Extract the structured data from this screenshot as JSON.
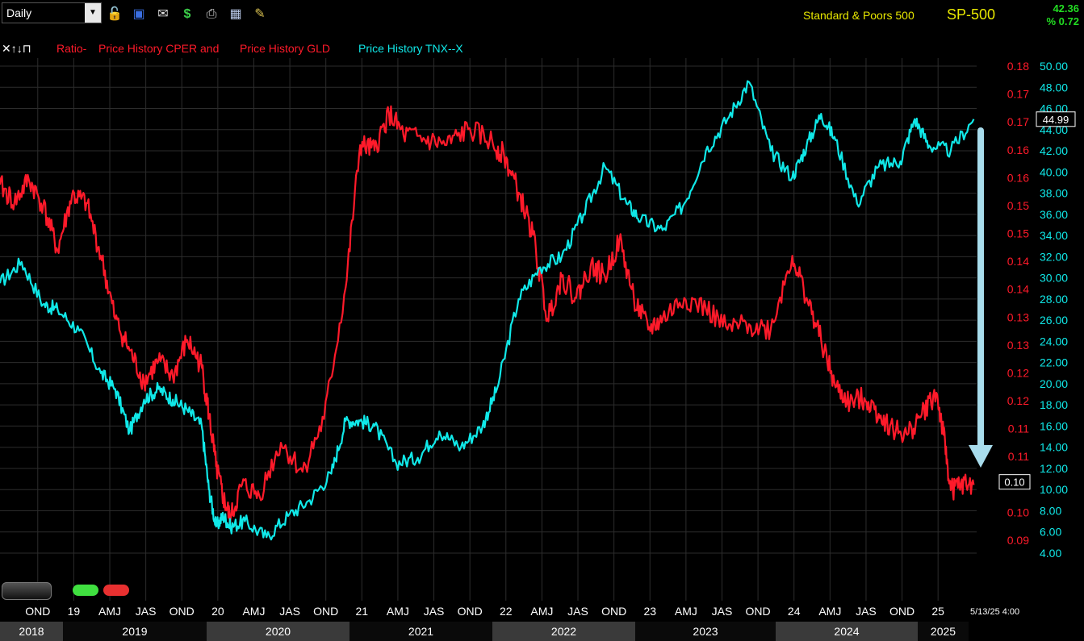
{
  "toolbar": {
    "period": "Daily",
    "icons": [
      "dropdown-arrow-icon",
      "lock-icon",
      "save-icon",
      "mail-icon",
      "dollar-icon",
      "print-icon",
      "calculator-icon",
      "pencil-icon"
    ],
    "index_name": "Standard & Poors 500",
    "symbol": "SP-500",
    "last_price": "42.36",
    "pct_change": "% 0.72"
  },
  "legend": {
    "controls": "✕↑↓⊓",
    "ratio_prefix": "Ratio-",
    "ratio_a": "Price History CPER and",
    "ratio_b": "Price History GLD",
    "tnx": "Price History TNX--X"
  },
  "colors": {
    "ratio": "#ff1a2a",
    "tnx": "#10e8e8",
    "grid": "#2c2c2c",
    "arrow": "#a8dcec"
  },
  "chart_data": {
    "type": "line",
    "title": "",
    "ratio_axis": {
      "ticks": [
        "0.18",
        "0.17",
        "0.17",
        "0.16",
        "0.16",
        "0.15",
        "0.15",
        "0.14",
        "0.14",
        "0.13",
        "0.13",
        "0.12",
        "0.12",
        "0.11",
        "0.11",
        "0.10",
        "0.10",
        "0.09"
      ],
      "range": [
        0.09,
        0.18
      ],
      "last_label": "0.10"
    },
    "tnx_axis": {
      "ticks": [
        "50.00",
        "48.00",
        "46.00",
        "44.00",
        "42.00",
        "40.00",
        "38.00",
        "36.00",
        "34.00",
        "32.00",
        "30.00",
        "28.00",
        "26.00",
        "24.00",
        "22.00",
        "20.00",
        "18.00",
        "16.00",
        "14.00",
        "12.00",
        "10.00",
        "8.00",
        "6.00",
        "4.00"
      ],
      "range": [
        4,
        50
      ],
      "last_label": "44.99"
    },
    "x_ticks": [
      "OND",
      "19",
      "AMJ",
      "JAS",
      "OND",
      "20",
      "AMJ",
      "JAS",
      "OND",
      "21",
      "AMJ",
      "JAS",
      "OND",
      "22",
      "AMJ",
      "JAS",
      "OND",
      "23",
      "AMJ",
      "JAS",
      "OND",
      "24",
      "AMJ",
      "JAS",
      "OND",
      "25"
    ],
    "years": [
      "2018",
      "2019",
      "2020",
      "2021",
      "2022",
      "2023",
      "2024",
      "2025"
    ],
    "last_date": "5/13/25 4:00",
    "series": [
      {
        "name": "Ratio- Price History CPER and Price History GLD",
        "axis": "left",
        "x": [
          2018.6,
          2018.7,
          2018.8,
          2018.9,
          2019.0,
          2019.1,
          2019.2,
          2019.3,
          2019.4,
          2019.5,
          2019.6,
          2019.7,
          2019.8,
          2019.9,
          2020.0,
          2020.05,
          2020.1,
          2020.15,
          2020.2,
          2020.28,
          2020.4,
          2020.55,
          2020.7,
          2020.85,
          2021.0,
          2021.1,
          2021.2,
          2021.3,
          2021.4,
          2021.55,
          2021.7,
          2021.85,
          2022.0,
          2022.1,
          2022.2,
          2022.3,
          2022.4,
          2022.5,
          2022.6,
          2022.7,
          2022.8,
          2022.9,
          2023.0,
          2023.1,
          2023.2,
          2023.35,
          2023.5,
          2023.65,
          2023.8,
          2023.95,
          2024.1,
          2024.2,
          2024.3,
          2024.4,
          2024.5,
          2024.6,
          2024.7,
          2024.8,
          2024.9,
          2025.0,
          2025.1,
          2025.15,
          2025.2,
          2025.27,
          2025.36
        ],
        "values": [
          0.1575,
          0.154,
          0.1585,
          0.1535,
          0.145,
          0.1555,
          0.154,
          0.144,
          0.132,
          0.126,
          0.12,
          0.124,
          0.121,
          0.128,
          0.123,
          0.114,
          0.104,
          0.098,
          0.094,
          0.1005,
          0.0985,
          0.1085,
          0.103,
          0.113,
          0.138,
          0.165,
          0.164,
          0.171,
          0.167,
          0.166,
          0.165,
          0.168,
          0.166,
          0.163,
          0.156,
          0.148,
          0.132,
          0.14,
          0.136,
          0.142,
          0.14,
          0.147,
          0.136,
          0.13,
          0.132,
          0.136,
          0.134,
          0.13,
          0.131,
          0.13,
          0.144,
          0.136,
          0.128,
          0.119,
          0.116,
          0.117,
          0.114,
          0.111,
          0.11,
          0.114,
          0.118,
          0.11,
          0.0995,
          0.1005,
          0.1005
        ]
      },
      {
        "name": "Price History TNX--X",
        "axis": "right",
        "x": [
          2018.6,
          2018.75,
          2018.9,
          2019.0,
          2019.15,
          2019.3,
          2019.4,
          2019.5,
          2019.6,
          2019.7,
          2019.8,
          2019.9,
          2020.0,
          2020.05,
          2020.1,
          2020.15,
          2020.2,
          2020.3,
          2020.45,
          2020.6,
          2020.75,
          2020.9,
          2021.0,
          2021.1,
          2021.2,
          2021.35,
          2021.5,
          2021.65,
          2021.8,
          2021.95,
          2022.05,
          2022.2,
          2022.35,
          2022.5,
          2022.65,
          2022.8,
          2022.95,
          2023.05,
          2023.2,
          2023.35,
          2023.5,
          2023.65,
          2023.8,
          2023.95,
          2024.1,
          2024.2,
          2024.3,
          2024.4,
          2024.55,
          2024.7,
          2024.85,
          2024.95,
          2025.05,
          2025.2,
          2025.36
        ],
        "values": [
          29.5,
          31.5,
          27.5,
          27.0,
          25.0,
          21.0,
          19.5,
          15.5,
          18.5,
          19.5,
          18.5,
          17.5,
          16.0,
          10.0,
          6.5,
          7.5,
          6.5,
          7.0,
          5.5,
          7.5,
          9.0,
          11.5,
          16.5,
          16.5,
          16.0,
          12.5,
          13.0,
          15.5,
          14.0,
          16.0,
          19.5,
          28.0,
          31.0,
          32.0,
          36.0,
          40.5,
          37.0,
          35.5,
          34.5,
          37.0,
          42.0,
          45.0,
          48.5,
          42.0,
          39.5,
          42.5,
          45.5,
          43.0,
          37.0,
          40.5,
          41.0,
          45.0,
          42.5,
          42.0,
          44.99
        ]
      }
    ]
  }
}
